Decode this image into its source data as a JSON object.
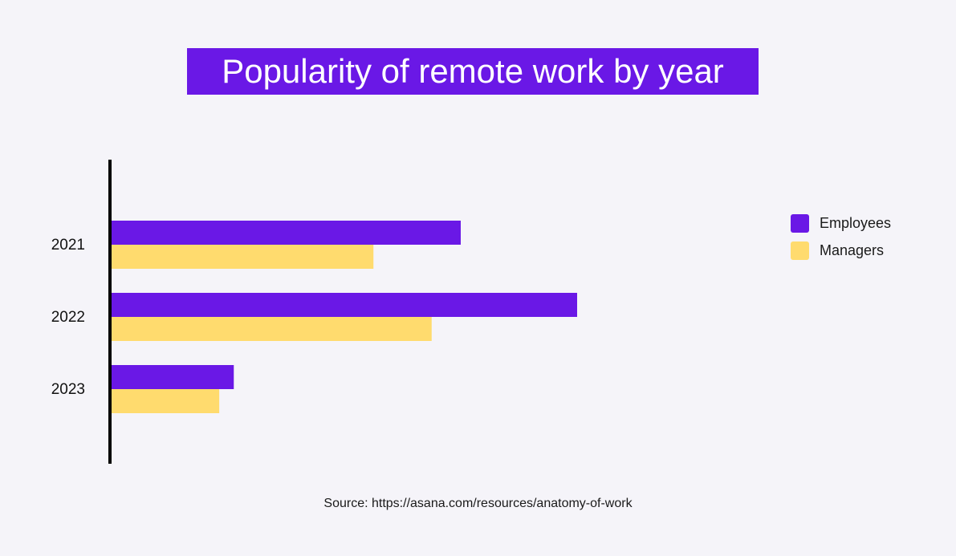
{
  "title": "Popularity of remote work by year",
  "source": "Source: https://asana.com/resources/anatomy-of-work",
  "colors": {
    "background": "#f5f4f9",
    "title_bg": "#6a18e6",
    "employees": "#6a18e6",
    "managers": "#ffdb6e",
    "axis": "#000000"
  },
  "chart_data": {
    "type": "bar",
    "orientation": "horizontal",
    "categories": [
      "2021",
      "2022",
      "2023"
    ],
    "series": [
      {
        "name": "Employees",
        "color": "#6a18e6",
        "values": [
          60,
          80,
          21
        ]
      },
      {
        "name": "Managers",
        "color": "#ffdb6e",
        "values": [
          45,
          55,
          18.5
        ]
      }
    ],
    "xlim": [
      0,
      100
    ],
    "grid": false,
    "value_axis_visible": false,
    "legend_position": "right"
  }
}
